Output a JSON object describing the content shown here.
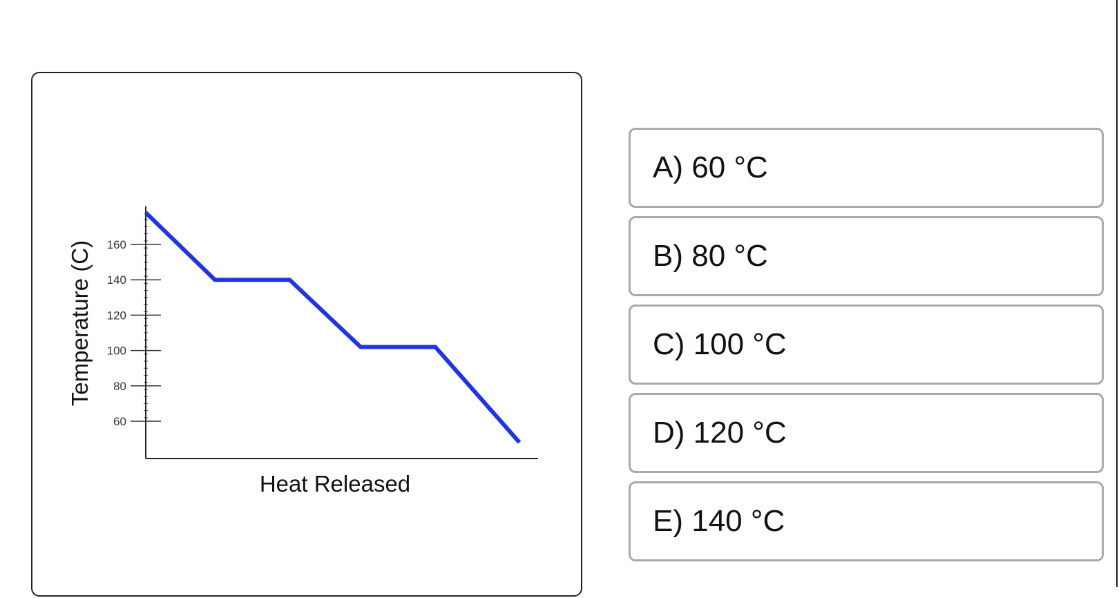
{
  "chart_data": {
    "type": "line",
    "title": "",
    "xlabel": "Heat Released",
    "ylabel": "Temperature (C)",
    "ylim": [
      45,
      180
    ],
    "xlim": [
      0,
      10
    ],
    "yticks": [
      "60",
      "80",
      "100",
      "120",
      "140",
      "160"
    ],
    "ytick_values": [
      60,
      80,
      100,
      120,
      140,
      160
    ],
    "grid": false,
    "series": [
      {
        "color": "#1f35e0",
        "x": [
          0,
          1.85,
          3.85,
          5.75,
          7.75,
          10
        ],
        "y": [
          178,
          140,
          140,
          102,
          102,
          48
        ]
      }
    ]
  },
  "answers": [
    {
      "label": "A) 60 °C"
    },
    {
      "label": "B) 80 °C"
    },
    {
      "label": "C) 100 °C"
    },
    {
      "label": "D) 120 °C"
    },
    {
      "label": "E) 140 °C"
    }
  ]
}
